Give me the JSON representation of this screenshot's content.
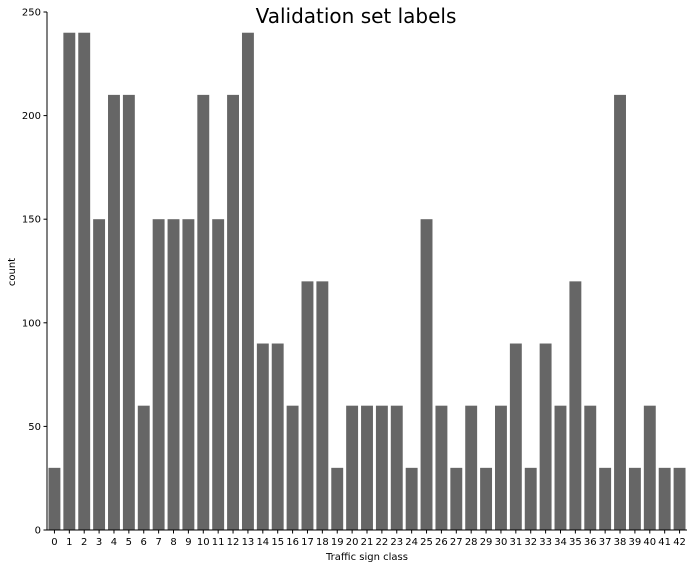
{
  "chart_data": {
    "type": "bar",
    "title": "Validation set labels",
    "xlabel": "Traffic sign class",
    "ylabel": "count",
    "categories": [
      "0",
      "1",
      "2",
      "3",
      "4",
      "5",
      "6",
      "7",
      "8",
      "9",
      "10",
      "11",
      "12",
      "13",
      "14",
      "15",
      "16",
      "17",
      "18",
      "19",
      "20",
      "21",
      "22",
      "23",
      "24",
      "25",
      "26",
      "27",
      "28",
      "29",
      "30",
      "31",
      "32",
      "33",
      "34",
      "35",
      "36",
      "37",
      "38",
      "39",
      "40",
      "41",
      "42"
    ],
    "values": [
      30,
      240,
      240,
      150,
      210,
      210,
      60,
      150,
      150,
      150,
      210,
      150,
      210,
      240,
      90,
      90,
      60,
      120,
      120,
      30,
      60,
      60,
      60,
      60,
      30,
      150,
      60,
      30,
      60,
      30,
      60,
      90,
      30,
      90,
      60,
      120,
      60,
      30,
      210,
      30,
      60,
      30,
      30
    ],
    "ylim": [
      0,
      250
    ],
    "yticks": [
      0,
      50,
      100,
      150,
      200,
      250
    ],
    "grid": false,
    "bar_color": "#666666"
  }
}
